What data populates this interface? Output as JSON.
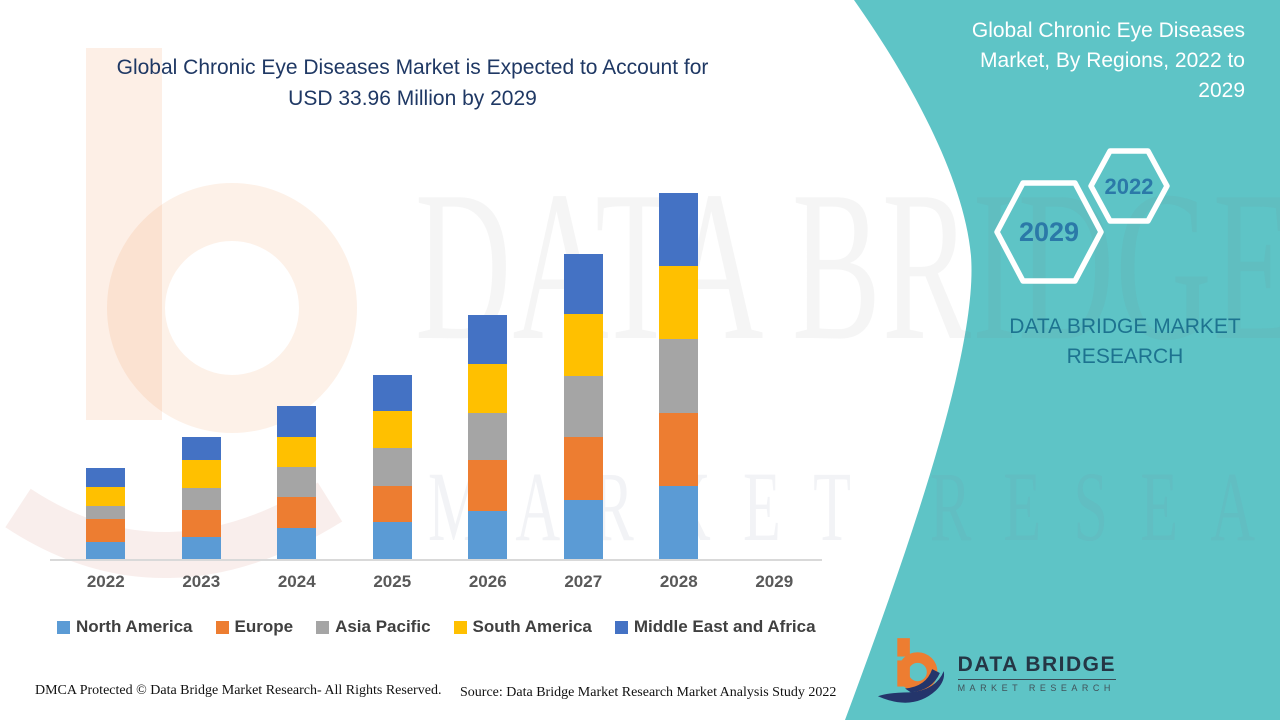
{
  "page": {
    "main_title_line1": "Global Chronic Eye Diseases Market is Expected to Account for",
    "main_title_line2": "USD 33.96 Million by 2029"
  },
  "panel": {
    "background_color": "#5EC4C6",
    "title_lines": [
      "Global Chronic Eye Diseases",
      "Market, By Regions, 2022 to",
      "2029"
    ],
    "hexagon_large_label": "2029",
    "hexagon_small_label": "2022",
    "hexagon_label_color": "#2B79A8",
    "brand_line1": "DATA BRIDGE MARKET",
    "brand_line2": "RESEARCH"
  },
  "logo": {
    "name": "DATA BRIDGE",
    "subtitle": "MARKET RESEARCH",
    "orange": "#ED7D31",
    "navy": "#24356B"
  },
  "watermark": {
    "line1": "DATA BRIDGE",
    "line2": "MARKET RESEARCH"
  },
  "chart_data": {
    "type": "bar",
    "stacked": true,
    "title": "Global Chronic Eye Diseases Market is Expected to Account for USD 33.96 Million by 2029",
    "subtitle": "Global Chronic Eye Diseases Market, By Regions, 2022 to 2029",
    "categories": [
      "2022",
      "2023",
      "2024",
      "2025",
      "2026",
      "2027",
      "2028",
      "2029"
    ],
    "series": [
      {
        "name": "North America",
        "color": "#5B9BD5",
        "values": [
          17,
          22,
          31,
          37,
          48,
          59,
          73,
          0
        ]
      },
      {
        "name": "Europe",
        "color": "#ED7D31",
        "values": [
          23,
          27,
          31,
          36,
          51,
          63,
          73,
          0
        ]
      },
      {
        "name": "Asia Pacific",
        "color": "#A5A5A5",
        "values": [
          13,
          22,
          30,
          38,
          47,
          61,
          74,
          0
        ]
      },
      {
        "name": "South America",
        "color": "#FFC000",
        "values": [
          19,
          28,
          30,
          37,
          49,
          62,
          73,
          0
        ]
      },
      {
        "name": "Middle East and Africa",
        "color": "#4472C4",
        "values": [
          19,
          23,
          31,
          36,
          49,
          60,
          73,
          0
        ]
      }
    ],
    "xlabel": "",
    "ylabel": "",
    "y_axis_visible": false,
    "value_note": "no numeric value axis shown; values are estimated relative heights (px), 2029 bar not drawn",
    "grid": false,
    "legend_position": "bottom"
  },
  "footer": {
    "left": "DMCA Protected © Data Bridge Market Research- All Rights Reserved.",
    "source": "Source: Data Bridge Market Research Market Analysis Study 2022"
  }
}
